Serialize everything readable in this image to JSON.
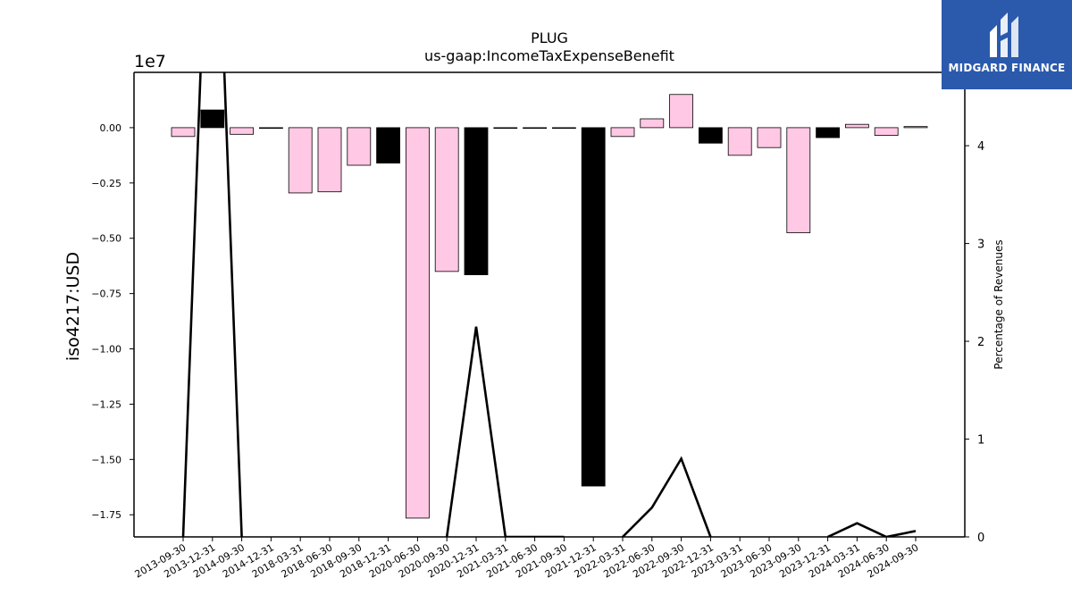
{
  "logo": {
    "text": "MIDGARD FINANCE"
  },
  "chart_data": {
    "type": "bar",
    "title": "PLUG",
    "subtitle": "us-gaap:IncomeTaxExpenseBenefit",
    "ylabel": "iso4217:USD",
    "y_offset_label": "1e7",
    "ylim": [
      -1.85,
      0.25
    ],
    "y_ticks": [
      "0.00",
      "−0.25",
      "−0.50",
      "−0.75",
      "−1.00",
      "−1.25",
      "−1.50",
      "−1.75"
    ],
    "y_tick_values": [
      0,
      -0.25,
      -0.5,
      -0.75,
      -1.0,
      -1.25,
      -1.5,
      -1.75
    ],
    "y2label": "Percentage of Revenues",
    "y2lim": [
      0,
      4.75
    ],
    "y2_ticks": [
      "0",
      "1",
      "2",
      "3",
      "4"
    ],
    "y2_tick_values": [
      0,
      1,
      2,
      3,
      4
    ],
    "categories": [
      "2013-09-30",
      "2013-12-31",
      "2014-09-30",
      "2014-12-31",
      "2018-03-31",
      "2018-06-30",
      "2018-09-30",
      "2018-12-31",
      "2020-06-30",
      "2020-09-30",
      "2020-12-31",
      "2021-03-31",
      "2021-06-30",
      "2021-09-30",
      "2021-12-31",
      "2022-03-31",
      "2022-06-30",
      "2022-09-30",
      "2022-12-31",
      "2023-03-31",
      "2023-06-30",
      "2023-09-30",
      "2023-12-31",
      "2024-03-31",
      "2024-06-30",
      "2024-09-30"
    ],
    "series": [
      {
        "values": [
          -0.04,
          0.08,
          -0.03,
          0.0,
          -0.295,
          -0.29,
          -0.17,
          -0.16,
          -1.765,
          -0.65,
          -0.665,
          0.0,
          0.0,
          0.0,
          -1.62,
          -0.04,
          0.04,
          0.15,
          -0.07,
          -0.125,
          -0.09,
          -0.475,
          -0.045,
          0.015,
          -0.035,
          0.005
        ],
        "bar_colors": [
          "#ffc8e4",
          "#000000",
          "#ffc8e4",
          "#ffc8e4",
          "#ffc8e4",
          "#ffc8e4",
          "#ffc8e4",
          "#000000",
          "#ffc8e4",
          "#ffc8e4",
          "#000000",
          "#ffc8e4",
          "#ffc8e4",
          "#ffc8e4",
          "#000000",
          "#ffc8e4",
          "#ffc8e4",
          "#ffc8e4",
          "#000000",
          "#ffc8e4",
          "#ffc8e4",
          "#ffc8e4",
          "#000000",
          "#ffc8e4",
          "#ffc8e4",
          "#ffc8e4"
        ]
      },
      {
        "type": "line",
        "axis": "right",
        "color": "#000000",
        "values": [
          0.0,
          8.0,
          0.0,
          null,
          null,
          null,
          null,
          null,
          null,
          0.0,
          2.15,
          0.0,
          0.0,
          0.0,
          null,
          0.0,
          0.3,
          0.8,
          0.0,
          null,
          null,
          null,
          0.0,
          0.14,
          0.0,
          0.06
        ]
      }
    ]
  }
}
